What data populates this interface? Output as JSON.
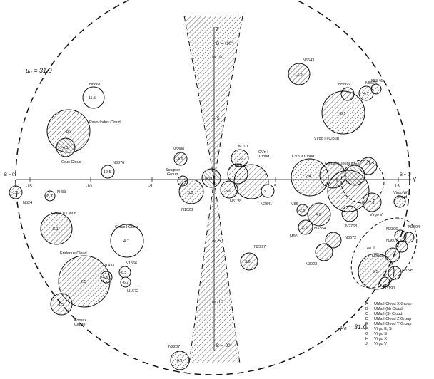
{
  "diagram": {
    "mu_top": "μ₀ = 31.0",
    "mu_bottom": "μ₀ = 31.0",
    "axis_z": "Z",
    "axis_y": "Y",
    "b_top": "B = +90°",
    "b_bottom": "B = -90°",
    "b_left": "B = 0°",
    "b_right": "B = 0°",
    "ticks_x": [
      "-15",
      "-10",
      "-5",
      "5",
      "10",
      "15"
    ],
    "ticks_z_pos": [
      "10",
      "5"
    ],
    "ticks_z_neg": [
      "-5",
      "-10"
    ],
    "legend": [
      {
        "key": "A",
        "text": "UMa I Cloud X Group"
      },
      {
        "key": "B",
        "text": "UMa I (N) Cloud"
      },
      {
        "key": "C",
        "text": "UMa I (S) Cloud"
      },
      {
        "key": "D",
        "text": "UMa I Cloud Z Group"
      },
      {
        "key": "E",
        "text": "UMa I Cloud Y Group"
      },
      {
        "key": "F",
        "text": "Virgo E, S"
      },
      {
        "key": "G",
        "text": "Virgo S"
      },
      {
        "key": "H",
        "text": "Virgo X"
      },
      {
        "key": "J",
        "text": "Virgo V"
      }
    ],
    "objects": [
      {
        "name": "N6643",
        "value": "12.3",
        "pattern": "h"
      },
      {
        "name": "N5846",
        "value": "",
        "pattern": "h"
      },
      {
        "name": "N5866",
        "value": "",
        "pattern": "h"
      },
      {
        "name": "N5676",
        "value": "4.7",
        "pattern": "h"
      },
      {
        "name": "N6861",
        "value": "-11.5",
        "pattern": "o"
      },
      {
        "name": "Pavo-Indus Cloud",
        "value": "-8.9",
        "pattern": "h"
      },
      {
        "name": "Grus Cloud",
        "value": "-4.5",
        "pattern": "h"
      },
      {
        "name": "N6876",
        "value": "-10.5",
        "pattern": "o"
      },
      {
        "name": "N6300",
        "value": "-4.6",
        "pattern": "h"
      },
      {
        "name": "Sculptor Group",
        "value": "",
        "pattern": "h"
      },
      {
        "name": "N1023",
        "value": "5.9",
        "pattern": "h"
      },
      {
        "name": "Local",
        "value": "",
        "pattern": "h"
      },
      {
        "name": "M81",
        "value": "",
        "pattern": "h"
      },
      {
        "name": "N5128",
        "value": "-3.6",
        "pattern": "h"
      },
      {
        "name": "M101",
        "value": "1.6",
        "pattern": "h"
      },
      {
        "name": "CVn I Cloud",
        "value": "",
        "pattern": "h"
      },
      {
        "name": "N2841",
        "value": "3.1",
        "pattern": "o"
      },
      {
        "name": "CVn II Cloud",
        "value": "2.4",
        "pattern": "h"
      },
      {
        "name": "Coma I Cloud",
        "value": "",
        "pattern": "h"
      },
      {
        "name": "UMa I",
        "value": "",
        "pattern": "h"
      },
      {
        "name": "Virgo Cloud",
        "value": "",
        "pattern": "h"
      },
      {
        "name": "Virgo W Cloud",
        "value": "",
        "pattern": "h"
      },
      {
        "name": "Virgo V",
        "value": "7.1",
        "pattern": "h"
      },
      {
        "name": "N2768",
        "value": "",
        "pattern": "h"
      },
      {
        "name": "M66",
        "value": "-2.5",
        "pattern": "h"
      },
      {
        "name": "M96",
        "value": "2.8",
        "pattern": "h"
      },
      {
        "name": "N3384",
        "value": "",
        "pattern": "h"
      },
      {
        "name": "N3672",
        "value": "",
        "pattern": "h"
      },
      {
        "name": "N3923",
        "value": "",
        "pattern": "h"
      },
      {
        "name": "N488",
        "value": "-8.3",
        "pattern": "h"
      },
      {
        "name": "N524",
        "value": "-1.8",
        "pattern": "h"
      },
      {
        "name": "Cetus II Cloud",
        "value": "5.1",
        "pattern": "h"
      },
      {
        "name": "Cetus I Cloud",
        "value": "4.7",
        "pattern": "o"
      },
      {
        "name": "Eridanus Cloud",
        "value": "2.5",
        "pattern": "h"
      },
      {
        "name": "N1433",
        "value": "-4.6",
        "pattern": "h"
      },
      {
        "name": "N1566",
        "value": "-6.5",
        "pattern": "o"
      },
      {
        "name": "N1672",
        "value": "",
        "pattern": "o"
      },
      {
        "name": "Fornax Cluster",
        "value": "-1.5",
        "pattern": "h"
      },
      {
        "name": "N2997",
        "value": "3.6",
        "pattern": "h"
      },
      {
        "name": "N3504",
        "value": "",
        "pattern": "h"
      },
      {
        "name": "N3396",
        "value": "",
        "pattern": "h"
      },
      {
        "name": "N3607",
        "value": "",
        "pattern": "h"
      },
      {
        "name": "Leo II",
        "value": "",
        "pattern": "h"
      },
      {
        "name": "N2968",
        "value": "5.5",
        "pattern": "h"
      },
      {
        "name": "N3245",
        "value": "",
        "pattern": "h"
      },
      {
        "name": "N3190",
        "value": "",
        "pattern": "h"
      },
      {
        "name": "N2207",
        "value": "-0.3",
        "pattern": "h"
      }
    ]
  }
}
